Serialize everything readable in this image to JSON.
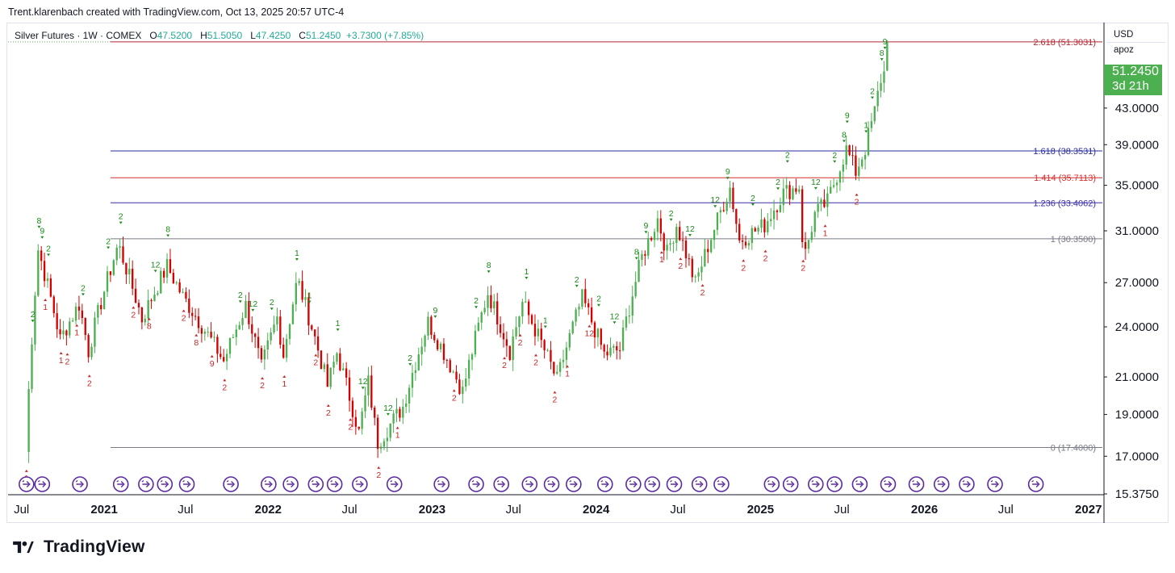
{
  "header": {
    "caption": "Trent.klarenbach created with TradingView.com, Oct 13, 2025 20:57 UTC-4"
  },
  "legend": {
    "symbol": "Silver Futures · 1W · COMEX",
    "open_label": "O",
    "open": "47.5200",
    "high_label": "H",
    "high": "51.5050",
    "low_label": "L",
    "low": "47.4250",
    "close_label": "C",
    "close": "51.2450",
    "change": "+3.7300 (+7.85%)"
  },
  "currency": {
    "code": "USD",
    "indicator": "apoz"
  },
  "price_tag": {
    "price": "51.2450",
    "countdown": "3d 21h",
    "color": "#4caf50"
  },
  "footer": {
    "brand": "TradingView"
  },
  "chart_data": {
    "type": "candlestick",
    "timeframe": "1W",
    "y_range": [
      15.375,
      54
    ],
    "x_range": [
      "2020-06",
      "2027-02"
    ],
    "y_scale": "log",
    "y_ticks": [
      "51.2450",
      "43.0000",
      "39.0000",
      "35.0000",
      "31.0000",
      "27.0000",
      "24.0000",
      "21.0000",
      "19.0000",
      "17.0000",
      "15.3750"
    ],
    "y_tick_values": [
      51.245,
      43,
      39,
      35,
      31,
      27,
      24,
      21,
      19,
      17,
      15.375
    ],
    "x_ticks": [
      "Jul",
      "2021",
      "Jul",
      "2022",
      "Jul",
      "2023",
      "Jul",
      "2024",
      "Jul",
      "2025",
      "Jul",
      "2026",
      "Jul",
      "2027"
    ],
    "x_tick_dates": [
      "2020-07",
      "2021-01",
      "2021-07",
      "2022-01",
      "2022-07",
      "2023-01",
      "2023-07",
      "2024-01",
      "2024-07",
      "2025-01",
      "2025-07",
      "2026-01",
      "2026-07",
      "2027-01"
    ],
    "x_tick_bold": [
      false,
      true,
      false,
      true,
      false,
      true,
      false,
      true,
      false,
      true,
      false,
      true,
      false,
      true
    ],
    "fib_levels": [
      {
        "label": "2.618 (51.3031)",
        "value": 51.3031,
        "color": "#b22833"
      },
      {
        "label": "1.618 (38.3531)",
        "value": 38.3531,
        "color": "#2a2e9f"
      },
      {
        "label": "1.414 (35.7113)",
        "value": 35.7113,
        "color": "#d32f2f"
      },
      {
        "label": "1.236 (33.4062)",
        "value": 33.4062,
        "color": "#3a2fa8"
      },
      {
        "label": "1 (30.3500)",
        "value": 30.35,
        "color": "#787b86"
      },
      {
        "label": "0 (17.4000)",
        "value": 17.4,
        "color": "#787b86"
      }
    ],
    "anchors": [
      [
        "2020-07-10",
        17.2
      ],
      [
        "2020-08-07",
        29.5
      ],
      [
        "2020-09-25",
        23.2
      ],
      [
        "2020-11-06",
        25.5
      ],
      [
        "2020-11-27",
        22.5
      ],
      [
        "2021-02-01",
        29.9
      ],
      [
        "2021-03-26",
        24.5
      ],
      [
        "2021-05-21",
        28.2
      ],
      [
        "2021-06-25",
        26.0
      ],
      [
        "2021-09-24",
        21.9
      ],
      [
        "2021-11-12",
        25.4
      ],
      [
        "2021-12-17",
        21.5
      ],
      [
        "2022-01-21",
        24.6
      ],
      [
        "2022-02-04",
        22.3
      ],
      [
        "2022-03-07",
        27.2
      ],
      [
        "2022-05-13",
        20.5
      ],
      [
        "2022-06-03",
        22.4
      ],
      [
        "2022-07-22",
        18.1
      ],
      [
        "2022-08-12",
        20.7
      ],
      [
        "2022-09-01",
        17.6
      ],
      [
        "2022-10-28",
        19.4
      ],
      [
        "2022-12-23",
        24.3
      ],
      [
        "2023-03-10",
        20.2
      ],
      [
        "2023-05-05",
        26.3
      ],
      [
        "2023-06-23",
        22.5
      ],
      [
        "2023-07-21",
        25.6
      ],
      [
        "2023-10-06",
        20.8
      ],
      [
        "2023-12-01",
        25.9
      ],
      [
        "2024-01-19",
        22.3
      ],
      [
        "2024-02-23",
        22.6
      ],
      [
        "2024-04-12",
        28.9
      ],
      [
        "2024-05-17",
        32.0
      ],
      [
        "2024-06-07",
        29.2
      ],
      [
        "2024-06-28",
        31.5
      ],
      [
        "2024-08-09",
        26.9
      ],
      [
        "2024-10-25",
        34.8
      ],
      [
        "2024-11-15",
        30.2
      ],
      [
        "2025-01-10",
        31.5
      ],
      [
        "2025-02-21",
        34.3
      ],
      [
        "2025-03-28",
        34.9
      ],
      [
        "2025-04-07",
        28.6
      ],
      [
        "2025-05-02",
        32.4
      ],
      [
        "2025-05-30",
        33.5
      ],
      [
        "2025-07-11",
        38.5
      ],
      [
        "2025-08-01",
        36.3
      ],
      [
        "2025-08-22",
        38.6
      ],
      [
        "2025-09-12",
        42.6
      ],
      [
        "2025-09-26",
        46.5
      ],
      [
        "2025-10-06",
        47.52
      ],
      [
        "2025-10-13",
        51.245
      ]
    ],
    "last_candle": {
      "open": 47.52,
      "high": 51.505,
      "low": 47.425,
      "close": 51.245
    },
    "td_labels": [
      [
        "2020-07-12",
        "1",
        "dn"
      ],
      [
        "2020-07-26",
        "2",
        "up"
      ],
      [
        "2020-08-09",
        "8",
        "up"
      ],
      [
        "2020-08-16",
        "9",
        "up"
      ],
      [
        "2020-08-23",
        "1",
        "dn"
      ],
      [
        "2020-08-30",
        "2",
        "up"
      ],
      [
        "2020-09-27",
        "1",
        "dn"
      ],
      [
        "2020-10-11",
        "2",
        "dn"
      ],
      [
        "2020-11-01",
        "1",
        "dn"
      ],
      [
        "2020-11-15",
        "2",
        "up"
      ],
      [
        "2020-11-29",
        "2",
        "dn"
      ],
      [
        "2021-01-10",
        "2",
        "up"
      ],
      [
        "2021-02-07",
        "2",
        "up"
      ],
      [
        "2021-03-07",
        "2",
        "dn"
      ],
      [
        "2021-04-11",
        "8",
        "dn"
      ],
      [
        "2021-04-25",
        "12",
        "up"
      ],
      [
        "2021-05-23",
        "8",
        "up"
      ],
      [
        "2021-06-27",
        "2",
        "dn"
      ],
      [
        "2021-07-25",
        "8",
        "dn"
      ],
      [
        "2021-08-29",
        "9",
        "dn"
      ],
      [
        "2021-09-26",
        "2",
        "dn"
      ],
      [
        "2021-10-31",
        "2",
        "up"
      ],
      [
        "2021-11-28",
        "12",
        "up"
      ],
      [
        "2021-12-19",
        "2",
        "dn"
      ],
      [
        "2022-01-09",
        "2",
        "up"
      ],
      [
        "2022-02-06",
        "1",
        "dn"
      ],
      [
        "2022-03-06",
        "1",
        "up"
      ],
      [
        "2022-04-03",
        "1",
        "up"
      ],
      [
        "2022-04-17",
        "2",
        "dn"
      ],
      [
        "2022-05-15",
        "2",
        "dn"
      ],
      [
        "2022-06-05",
        "1",
        "up"
      ],
      [
        "2022-07-03",
        "2",
        "dn"
      ],
      [
        "2022-07-31",
        "12",
        "up"
      ],
      [
        "2022-09-04",
        "2",
        "dn"
      ],
      [
        "2022-09-25",
        "12",
        "up"
      ],
      [
        "2022-10-16",
        "1",
        "dn"
      ],
      [
        "2022-11-13",
        "2",
        "up"
      ],
      [
        "2023-01-08",
        "9",
        "up"
      ],
      [
        "2023-02-19",
        "2",
        "dn"
      ],
      [
        "2023-04-09",
        "2",
        "up"
      ],
      [
        "2023-05-07",
        "8",
        "up"
      ],
      [
        "2023-06-11",
        "2",
        "dn"
      ],
      [
        "2023-07-16",
        "2",
        "dn"
      ],
      [
        "2023-07-30",
        "1",
        "up"
      ],
      [
        "2023-08-20",
        "2",
        "dn"
      ],
      [
        "2023-09-10",
        "1",
        "up"
      ],
      [
        "2023-10-01",
        "2",
        "dn"
      ],
      [
        "2023-10-29",
        "1",
        "dn"
      ],
      [
        "2023-11-19",
        "2",
        "up"
      ],
      [
        "2023-12-17",
        "12",
        "dn"
      ],
      [
        "2024-01-07",
        "2",
        "up"
      ],
      [
        "2024-02-11",
        "12",
        "up"
      ],
      [
        "2024-03-31",
        "8",
        "up"
      ],
      [
        "2024-04-21",
        "9",
        "up"
      ],
      [
        "2024-05-26",
        "1",
        "dn"
      ],
      [
        "2024-06-16",
        "2",
        "up"
      ],
      [
        "2024-07-07",
        "2",
        "dn"
      ],
      [
        "2024-07-28",
        "12",
        "up"
      ],
      [
        "2024-08-25",
        "2",
        "dn"
      ],
      [
        "2024-09-22",
        "12",
        "up"
      ],
      [
        "2024-10-20",
        "9",
        "up"
      ],
      [
        "2024-11-24",
        "2",
        "dn"
      ],
      [
        "2024-12-15",
        "2",
        "up"
      ],
      [
        "2025-01-12",
        "2",
        "dn"
      ],
      [
        "2025-02-09",
        "2",
        "up"
      ],
      [
        "2025-03-02",
        "2",
        "up"
      ],
      [
        "2025-04-06",
        "2",
        "dn"
      ],
      [
        "2025-05-04",
        "12",
        "up"
      ],
      [
        "2025-05-25",
        "1",
        "dn"
      ],
      [
        "2025-06-15",
        "2",
        "up"
      ],
      [
        "2025-07-06",
        "8",
        "up"
      ],
      [
        "2025-07-13",
        "9",
        "up"
      ],
      [
        "2025-08-03",
        "2",
        "dn"
      ],
      [
        "2025-08-24",
        "1",
        "up"
      ],
      [
        "2025-09-07",
        "2",
        "up"
      ],
      [
        "2025-09-28",
        "8",
        "up"
      ],
      [
        "2025-10-05",
        "9",
        "up"
      ]
    ],
    "markers": [
      "2020-07-12",
      "2020-08-16",
      "2020-11-08",
      "2021-02-07",
      "2021-04-04",
      "2021-05-16",
      "2021-07-04",
      "2021-10-10",
      "2022-01-02",
      "2022-02-20",
      "2022-04-17",
      "2022-05-29",
      "2022-07-24",
      "2022-10-09",
      "2023-01-22",
      "2023-04-09",
      "2023-06-04",
      "2023-08-06",
      "2023-09-24",
      "2023-11-12",
      "2024-01-21",
      "2024-03-24",
      "2024-05-05",
      "2024-06-23",
      "2024-08-18",
      "2024-10-06",
      "2025-01-26",
      "2025-03-09",
      "2025-05-04",
      "2025-06-15",
      "2025-08-10",
      "2025-10-12",
      "2025-12-14",
      "2026-02-08",
      "2026-04-05",
      "2026-06-07",
      "2026-09-06",
      "2027-02-07"
    ]
  }
}
